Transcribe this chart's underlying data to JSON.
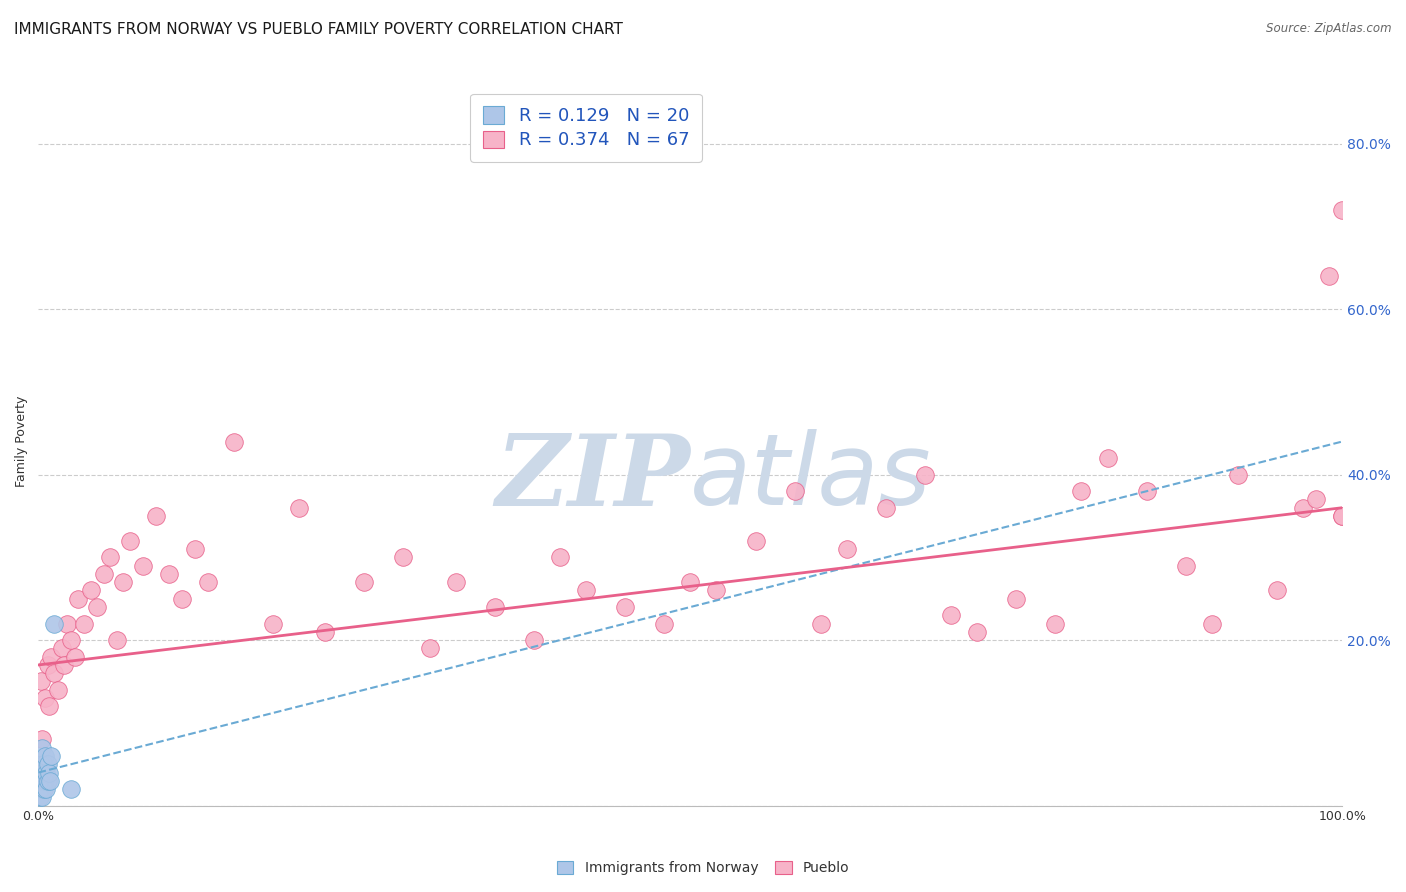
{
  "title": "IMMIGRANTS FROM NORWAY VS PUEBLO FAMILY POVERTY CORRELATION CHART",
  "source": "Source: ZipAtlas.com",
  "ylabel": "Family Poverty",
  "xlim": [
    0,
    1.0
  ],
  "ylim": [
    0,
    0.88
  ],
  "yticks": [
    0.0,
    0.2,
    0.4,
    0.6,
    0.8
  ],
  "yticklabels_right": [
    "",
    "20.0%",
    "40.0%",
    "60.0%",
    "80.0%"
  ],
  "grid_color": "#cccccc",
  "background_color": "#ffffff",
  "norway_color": "#aec6e8",
  "norway_edge_color": "#6aaad4",
  "norway_label": "Immigrants from Norway",
  "norway_R": 0.129,
  "norway_N": 20,
  "norway_line_color": "#6aaad4",
  "norway_line_x0": 0.0,
  "norway_line_y0": 0.04,
  "norway_line_x1": 1.0,
  "norway_line_y1": 0.44,
  "pueblo_color": "#f7b3c8",
  "pueblo_edge_color": "#e8608a",
  "pueblo_label": "Pueblo",
  "pueblo_R": 0.374,
  "pueblo_N": 67,
  "pueblo_line_color": "#e8608a",
  "pueblo_line_x0": 0.0,
  "pueblo_line_y0": 0.17,
  "pueblo_line_x1": 1.0,
  "pueblo_line_y1": 0.36,
  "norway_x": [
    0.001,
    0.001,
    0.002,
    0.002,
    0.003,
    0.003,
    0.003,
    0.004,
    0.004,
    0.005,
    0.005,
    0.006,
    0.006,
    0.007,
    0.007,
    0.008,
    0.009,
    0.01,
    0.012,
    0.025
  ],
  "norway_y": [
    0.01,
    0.03,
    0.02,
    0.05,
    0.01,
    0.04,
    0.07,
    0.02,
    0.05,
    0.03,
    0.06,
    0.02,
    0.04,
    0.03,
    0.05,
    0.04,
    0.03,
    0.06,
    0.22,
    0.02
  ],
  "pueblo_x": [
    0.002,
    0.005,
    0.007,
    0.008,
    0.01,
    0.012,
    0.015,
    0.018,
    0.02,
    0.022,
    0.025,
    0.028,
    0.03,
    0.035,
    0.04,
    0.045,
    0.05,
    0.055,
    0.06,
    0.065,
    0.07,
    0.08,
    0.09,
    0.1,
    0.11,
    0.12,
    0.13,
    0.15,
    0.18,
    0.2,
    0.22,
    0.25,
    0.28,
    0.3,
    0.32,
    0.35,
    0.38,
    0.4,
    0.42,
    0.45,
    0.48,
    0.5,
    0.52,
    0.55,
    0.58,
    0.6,
    0.62,
    0.65,
    0.68,
    0.7,
    0.72,
    0.75,
    0.78,
    0.8,
    0.82,
    0.85,
    0.88,
    0.9,
    0.92,
    0.95,
    0.97,
    0.98,
    0.99,
    1.0,
    1.0,
    1.0,
    0.003
  ],
  "pueblo_y": [
    0.15,
    0.13,
    0.17,
    0.12,
    0.18,
    0.16,
    0.14,
    0.19,
    0.17,
    0.22,
    0.2,
    0.18,
    0.25,
    0.22,
    0.26,
    0.24,
    0.28,
    0.3,
    0.2,
    0.27,
    0.32,
    0.29,
    0.35,
    0.28,
    0.25,
    0.31,
    0.27,
    0.44,
    0.22,
    0.36,
    0.21,
    0.27,
    0.3,
    0.19,
    0.27,
    0.24,
    0.2,
    0.3,
    0.26,
    0.24,
    0.22,
    0.27,
    0.26,
    0.32,
    0.38,
    0.22,
    0.31,
    0.36,
    0.4,
    0.23,
    0.21,
    0.25,
    0.22,
    0.38,
    0.42,
    0.38,
    0.29,
    0.22,
    0.4,
    0.26,
    0.36,
    0.37,
    0.64,
    0.72,
    0.35,
    0.35,
    0.08
  ],
  "watermark_zip": "ZIP",
  "watermark_atlas": "atlas",
  "watermark_color": "#ccd9e8",
  "title_fontsize": 11,
  "axis_fontsize": 9,
  "tick_fontsize": 9,
  "legend_fontsize": 13
}
